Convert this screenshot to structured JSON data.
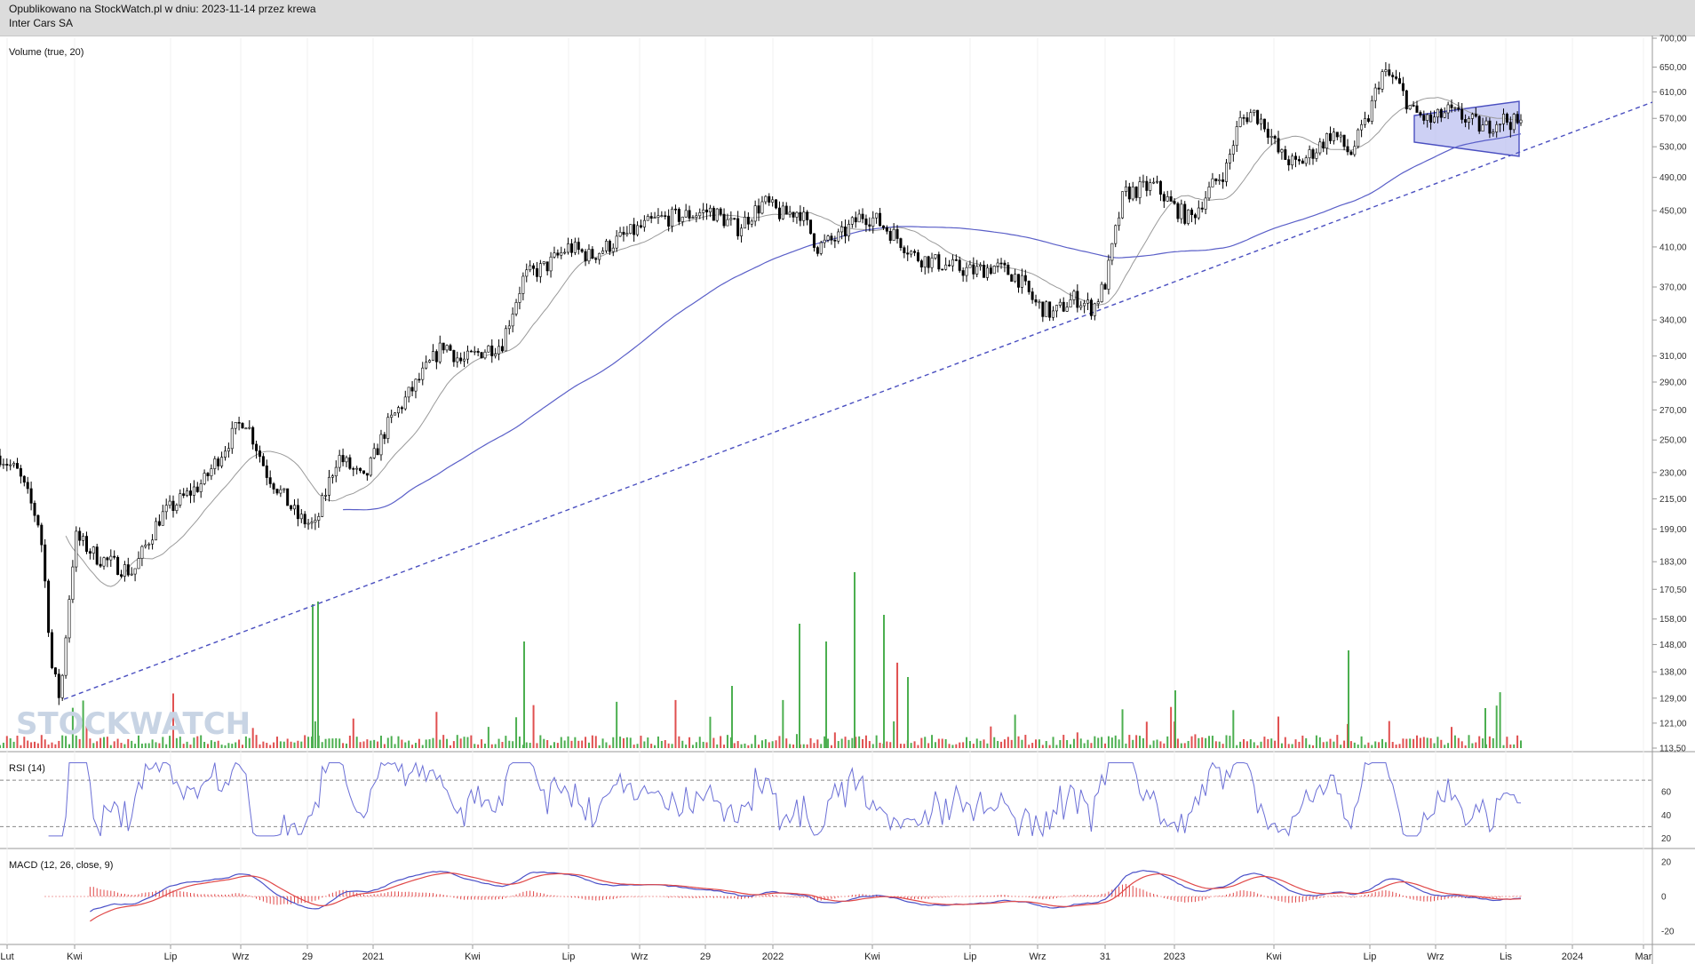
{
  "header": {
    "line1": "Opublikowano na StockWatch.pl w dniu: 2023-11-14 przez krewa",
    "line2": "Inter Cars SA"
  },
  "watermark": "STOCKWATCH",
  "colors": {
    "up_volume": "#4caf50",
    "down_volume": "#e05050",
    "sma_slow": "#5a5fc8",
    "sma_fast": "#9a9a9a",
    "rsi_line": "#6b6fd6",
    "macd_line": "#4a50c8",
    "signal_line": "#e04848",
    "trendline": "#4a4fc0",
    "channel_fill": "#b8bcf0"
  },
  "chart_data": [
    {
      "type": "line",
      "panel": "price",
      "title": "",
      "x": [
        "2020-03",
        "2020-05",
        "2020-07",
        "2020-09",
        "2020-11",
        "2021-01",
        "2021-04",
        "2021-07",
        "2021-10",
        "2022-01",
        "2022-04",
        "2022-07",
        "2022-10",
        "2023-01",
        "2023-04",
        "2023-07",
        "2023-09",
        "2023-11"
      ],
      "series": [
        {
          "values": [
            230,
            190,
            210,
            260,
            205,
            245,
            330,
            355,
            410,
            460,
            395,
            380,
            350,
            480,
            580,
            650,
            580,
            560
          ]
        }
      ],
      "yticks": [
        "700,00",
        "650,00",
        "610,00",
        "570,00",
        "530,00",
        "490,00",
        "450,00",
        "410,00",
        "370,00",
        "340,00",
        "310,00",
        "290,00",
        "270,00",
        "250,00",
        "230,00",
        "215,00",
        "199,00",
        "183,00",
        "170,50",
        "158,00",
        "148,00",
        "138,00",
        "129,00",
        "121,00",
        "113,50"
      ],
      "xticks": [
        "Lut",
        "Kwi",
        "Lip",
        "Wrz",
        "29",
        "2021",
        "Kwi",
        "Lip",
        "Wrz",
        "29",
        "2022",
        "Kwi",
        "Lip",
        "Wrz",
        "31",
        "2023",
        "Kwi",
        "Lip",
        "Wrz",
        "Lis",
        "2024",
        "Mar"
      ],
      "ylim": [
        113.5,
        700
      ],
      "scale": "log"
    },
    {
      "type": "bar",
      "panel": "volume",
      "title": "Volume (true, 20)"
    },
    {
      "type": "line",
      "panel": "rsi",
      "title": "RSI (14)",
      "yticks": [
        "60",
        "40",
        "20"
      ],
      "levels": [
        70,
        30
      ],
      "ylim": [
        15,
        90
      ]
    },
    {
      "type": "line",
      "panel": "macd",
      "title": "MACD (12, 26, close, 9)",
      "yticks": [
        "20",
        "0",
        "-20"
      ],
      "ylim": [
        -25,
        25
      ]
    }
  ]
}
